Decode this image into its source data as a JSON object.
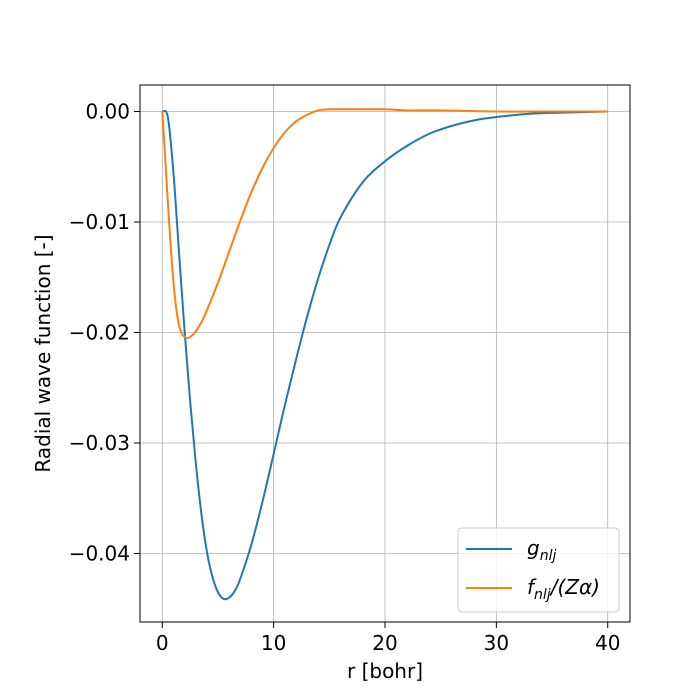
{
  "chart_data": {
    "type": "line",
    "title": "",
    "xlabel": "r [bohr]",
    "ylabel": "Radial wave function [-]",
    "xlim": [
      -2,
      42
    ],
    "ylim": [
      -0.0462,
      0.0024
    ],
    "xticks": [
      0,
      10,
      20,
      30,
      40
    ],
    "xtick_labels": [
      "0",
      "10",
      "20",
      "30",
      "40"
    ],
    "yticks": [
      0.0,
      -0.01,
      -0.02,
      -0.03,
      -0.04
    ],
    "ytick_labels": [
      "0.00",
      "−0.01",
      "−0.02",
      "−0.03",
      "−0.04"
    ],
    "grid": true,
    "legend_position": "lower-right",
    "series": [
      {
        "name": "g_nlj",
        "legend_label": "g",
        "legend_subscript": "nlj",
        "color": "#1f77b4",
        "x": [
          0,
          0.5,
          1,
          1.5,
          2,
          2.5,
          3,
          3.5,
          4,
          4.5,
          5,
          5.5,
          6,
          6.5,
          7,
          8,
          9,
          10,
          11,
          12,
          13,
          14,
          15,
          16,
          18,
          20,
          22,
          24,
          26,
          28,
          30,
          33,
          36,
          40
        ],
        "y": [
          0.0,
          -0.0005,
          -0.0055,
          -0.0127,
          -0.0198,
          -0.0262,
          -0.0317,
          -0.0363,
          -0.0398,
          -0.0421,
          -0.0435,
          -0.0441,
          -0.044,
          -0.0434,
          -0.0423,
          -0.0392,
          -0.0353,
          -0.031,
          -0.0266,
          -0.0225,
          -0.0186,
          -0.0151,
          -0.0121,
          -0.0096,
          -0.0064,
          -0.0045,
          -0.0031,
          -0.002,
          -0.0013,
          -0.0008,
          -0.0005,
          -0.0002,
          -0.0001,
          0.0
        ]
      },
      {
        "name": "f_nlj/(Zα)",
        "legend_label": "f",
        "legend_subscript": "nlj",
        "legend_suffix": "/(Zα)",
        "color": "#ff7f0e",
        "x": [
          0,
          0.25,
          0.5,
          0.75,
          1,
          1.25,
          1.5,
          1.75,
          2,
          2.25,
          2.5,
          2.75,
          3,
          3.5,
          4,
          5,
          6,
          7,
          8,
          9,
          10,
          11,
          12,
          13,
          14,
          15,
          16,
          18,
          20,
          22,
          25,
          30,
          35,
          40
        ],
        "y": [
          0.0,
          -0.004,
          -0.0082,
          -0.0121,
          -0.0154,
          -0.0178,
          -0.0193,
          -0.0201,
          -0.0204,
          -0.0205,
          -0.0204,
          -0.0202,
          -0.0199,
          -0.0191,
          -0.018,
          -0.0155,
          -0.0127,
          -0.0099,
          -0.0073,
          -0.0051,
          -0.0033,
          -0.0019,
          -0.0009,
          -0.0003,
          0.0001,
          0.0002,
          0.0002,
          0.0002,
          0.0002,
          0.0001,
          0.0001,
          0.0,
          0.0,
          0.0
        ]
      }
    ]
  }
}
